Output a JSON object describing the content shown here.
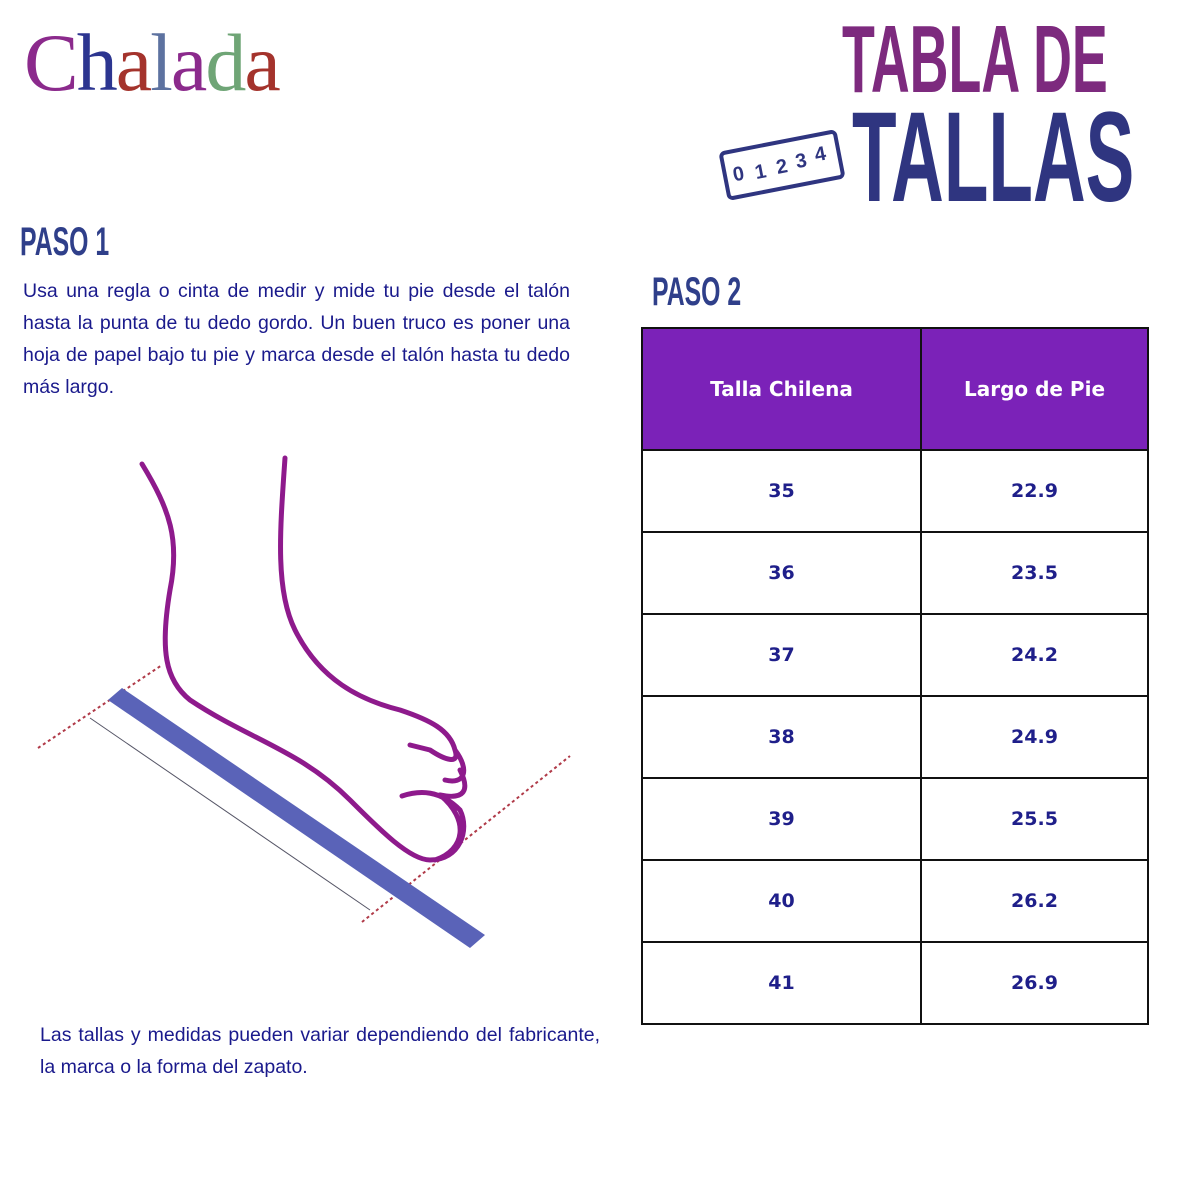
{
  "brand": {
    "logo_text": "Chalada"
  },
  "title": {
    "line1": "TABLA DE",
    "line2": "TALLAS",
    "ruler_digits": [
      "0",
      "1",
      "2",
      "3",
      "4"
    ]
  },
  "step1": {
    "heading": "PASO 1",
    "text": "Usa una regla o cinta de medir y mide tu pie desde el talón hasta la punta de tu dedo gordo. Un buen truco es poner una hoja de papel bajo tu pie y marca desde el talón hasta tu dedo más largo."
  },
  "step2": {
    "heading": "PASO 2"
  },
  "table": {
    "headers": [
      "Talla Chilena",
      "Largo de Pie"
    ],
    "rows": [
      [
        "35",
        "22.9"
      ],
      [
        "36",
        "23.5"
      ],
      [
        "37",
        "24.2"
      ],
      [
        "38",
        "24.9"
      ],
      [
        "39",
        "25.5"
      ],
      [
        "40",
        "26.2"
      ],
      [
        "41",
        "26.9"
      ]
    ]
  },
  "note": "Las tallas y medidas pueden variar dependiendo del fabricante, la marca o la forma del zapato.",
  "colors": {
    "purple": "#7d2a7e",
    "navy": "#2f3580",
    "header_bg": "#7b22b8",
    "foot": "#8e1a8c",
    "ruler": "#5a63b8",
    "guide": "#b03a48"
  }
}
